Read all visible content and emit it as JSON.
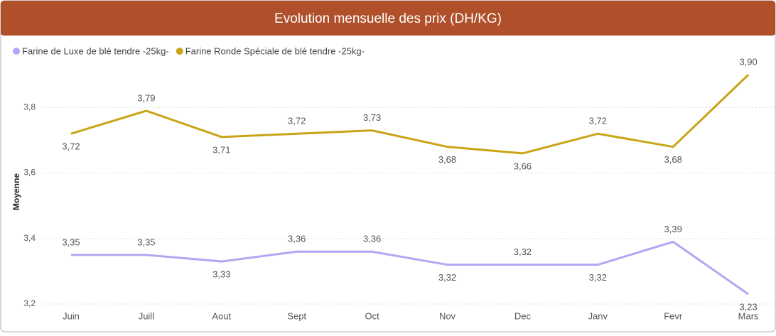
{
  "chart_data": {
    "type": "line",
    "title": "Evolution mensuelle des prix (DH/KG)",
    "y_label": "Moyenne",
    "categories": [
      "Juin",
      "Juill",
      "Aout",
      "Sept",
      "Oct",
      "Nov",
      "Dec",
      "Janv",
      "Fevr",
      "Mars"
    ],
    "series": [
      {
        "name": "Farine de Luxe de blé tendre -25kg-",
        "color": "#b4a6f2",
        "values": [
          3.35,
          3.35,
          3.33,
          3.36,
          3.36,
          3.32,
          3.32,
          3.32,
          3.39,
          3.23
        ],
        "value_labels": [
          "3,35",
          "3,35",
          "3,33",
          "3,36",
          "3,36",
          "3,32",
          "3,32",
          "3,32",
          "3,39",
          "3,23"
        ]
      },
      {
        "name": "Farine Ronde Spéciale de blé tendre -25kg-",
        "color": "#c8a416",
        "values": [
          3.72,
          3.79,
          3.71,
          3.72,
          3.73,
          3.68,
          3.66,
          3.72,
          3.68,
          3.9
        ],
        "value_labels": [
          "3,72",
          "3,79",
          "3,71",
          "3,72",
          "3,73",
          "3,68",
          "3,66",
          "3,72",
          "3,68",
          "3,90"
        ]
      }
    ],
    "ylim": [
      3.2,
      3.92
    ],
    "yticks": [
      {
        "value": 3.2,
        "label": "3,2"
      },
      {
        "value": 3.4,
        "label": "3,4"
      },
      {
        "value": 3.6,
        "label": "3,6"
      },
      {
        "value": 3.8,
        "label": "3,8"
      }
    ],
    "grid": true,
    "legend": "top-left"
  }
}
